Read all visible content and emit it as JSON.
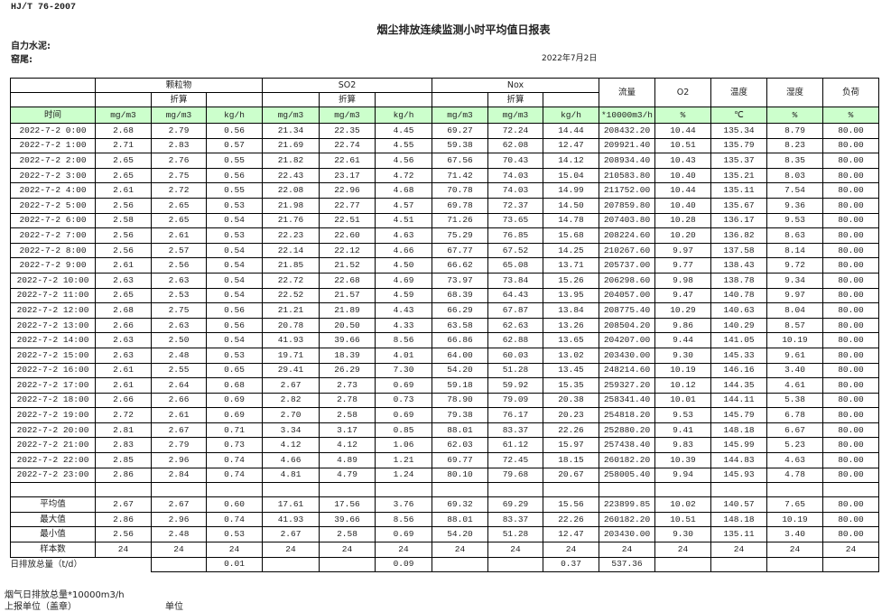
{
  "header": {
    "standard": "HJ/T  76-2007",
    "title": "烟尘排放连续监测小时平均值日报表",
    "company": "自力水泥:",
    "kiln": "窑尾:",
    "date": "2022年7月2日"
  },
  "table": {
    "groups": [
      "颗粒物",
      "SO2",
      "Nox"
    ],
    "converted_label": "折算",
    "single_headers": [
      "流量",
      "O2",
      "温度",
      "湿度",
      "负荷"
    ],
    "units": [
      "时间",
      "mg/m3",
      "mg/m3",
      "kg/h",
      "mg/m3",
      "mg/m3",
      "kg/h",
      "mg/m3",
      "mg/m3",
      "kg/h",
      "*10000m3/h",
      "%",
      "℃",
      "%",
      "%"
    ],
    "rows": [
      [
        "2022-7-2 0:00",
        "2.68",
        "2.79",
        "0.56",
        "21.34",
        "22.35",
        "4.45",
        "69.27",
        "72.24",
        "14.44",
        "208432.20",
        "10.44",
        "135.34",
        "8.79",
        "80.00"
      ],
      [
        "2022-7-2 1:00",
        "2.71",
        "2.83",
        "0.57",
        "21.69",
        "22.74",
        "4.55",
        "59.38",
        "62.08",
        "12.47",
        "209921.40",
        "10.51",
        "135.79",
        "8.23",
        "80.00"
      ],
      [
        "2022-7-2 2:00",
        "2.65",
        "2.76",
        "0.55",
        "21.82",
        "22.61",
        "4.56",
        "67.56",
        "70.43",
        "14.12",
        "208934.40",
        "10.43",
        "135.37",
        "8.35",
        "80.00"
      ],
      [
        "2022-7-2 3:00",
        "2.65",
        "2.75",
        "0.56",
        "22.43",
        "23.17",
        "4.72",
        "71.42",
        "74.03",
        "15.04",
        "210583.80",
        "10.40",
        "135.21",
        "8.03",
        "80.00"
      ],
      [
        "2022-7-2 4:00",
        "2.61",
        "2.72",
        "0.55",
        "22.08",
        "22.96",
        "4.68",
        "70.78",
        "74.03",
        "14.99",
        "211752.00",
        "10.44",
        "135.11",
        "7.54",
        "80.00"
      ],
      [
        "2022-7-2 5:00",
        "2.56",
        "2.65",
        "0.53",
        "21.98",
        "22.77",
        "4.57",
        "69.78",
        "72.37",
        "14.50",
        "207859.80",
        "10.40",
        "135.67",
        "9.36",
        "80.00"
      ],
      [
        "2022-7-2 6:00",
        "2.58",
        "2.65",
        "0.54",
        "21.76",
        "22.51",
        "4.51",
        "71.26",
        "73.65",
        "14.78",
        "207403.80",
        "10.28",
        "136.17",
        "9.53",
        "80.00"
      ],
      [
        "2022-7-2 7:00",
        "2.56",
        "2.61",
        "0.53",
        "22.23",
        "22.60",
        "4.63",
        "75.29",
        "76.85",
        "15.68",
        "208224.60",
        "10.20",
        "136.82",
        "8.63",
        "80.00"
      ],
      [
        "2022-7-2 8:00",
        "2.56",
        "2.57",
        "0.54",
        "22.14",
        "22.12",
        "4.66",
        "67.77",
        "67.52",
        "14.25",
        "210267.60",
        "9.97",
        "137.58",
        "8.14",
        "80.00"
      ],
      [
        "2022-7-2 9:00",
        "2.61",
        "2.56",
        "0.54",
        "21.85",
        "21.52",
        "4.50",
        "66.62",
        "65.08",
        "13.71",
        "205737.00",
        "9.77",
        "138.43",
        "9.72",
        "80.00"
      ],
      [
        "2022-7-2 10:00",
        "2.63",
        "2.63",
        "0.54",
        "22.72",
        "22.68",
        "4.69",
        "73.97",
        "73.84",
        "15.26",
        "206298.60",
        "9.98",
        "138.78",
        "9.34",
        "80.00"
      ],
      [
        "2022-7-2 11:00",
        "2.65",
        "2.53",
        "0.54",
        "22.52",
        "21.57",
        "4.59",
        "68.39",
        "64.43",
        "13.95",
        "204057.00",
        "9.47",
        "140.78",
        "9.97",
        "80.00"
      ],
      [
        "2022-7-2 12:00",
        "2.68",
        "2.75",
        "0.56",
        "21.21",
        "21.89",
        "4.43",
        "66.29",
        "67.87",
        "13.84",
        "208775.40",
        "10.29",
        "140.63",
        "8.04",
        "80.00"
      ],
      [
        "2022-7-2 13:00",
        "2.66",
        "2.63",
        "0.56",
        "20.78",
        "20.50",
        "4.33",
        "63.58",
        "62.63",
        "13.26",
        "208504.20",
        "9.86",
        "140.29",
        "8.57",
        "80.00"
      ],
      [
        "2022-7-2 14:00",
        "2.63",
        "2.50",
        "0.54",
        "41.93",
        "39.66",
        "8.56",
        "66.86",
        "62.88",
        "13.65",
        "204207.00",
        "9.44",
        "141.05",
        "10.19",
        "80.00"
      ],
      [
        "2022-7-2 15:00",
        "2.63",
        "2.48",
        "0.53",
        "19.71",
        "18.39",
        "4.01",
        "64.00",
        "60.03",
        "13.02",
        "203430.00",
        "9.30",
        "145.33",
        "9.61",
        "80.00"
      ],
      [
        "2022-7-2 16:00",
        "2.61",
        "2.55",
        "0.65",
        "29.41",
        "26.29",
        "7.30",
        "54.20",
        "51.28",
        "13.45",
        "248214.60",
        "10.19",
        "146.16",
        "3.40",
        "80.00"
      ],
      [
        "2022-7-2 17:00",
        "2.61",
        "2.64",
        "0.68",
        "2.67",
        "2.73",
        "0.69",
        "59.18",
        "59.92",
        "15.35",
        "259327.20",
        "10.12",
        "144.35",
        "4.61",
        "80.00"
      ],
      [
        "2022-7-2 18:00",
        "2.66",
        "2.66",
        "0.69",
        "2.82",
        "2.78",
        "0.73",
        "78.90",
        "79.09",
        "20.38",
        "258341.40",
        "10.01",
        "144.11",
        "5.38",
        "80.00"
      ],
      [
        "2022-7-2 19:00",
        "2.72",
        "2.61",
        "0.69",
        "2.70",
        "2.58",
        "0.69",
        "79.38",
        "76.17",
        "20.23",
        "254818.20",
        "9.53",
        "145.79",
        "6.78",
        "80.00"
      ],
      [
        "2022-7-2 20:00",
        "2.81",
        "2.67",
        "0.71",
        "3.34",
        "3.17",
        "0.85",
        "88.01",
        "83.37",
        "22.26",
        "252880.20",
        "9.41",
        "148.18",
        "6.67",
        "80.00"
      ],
      [
        "2022-7-2 21:00",
        "2.83",
        "2.79",
        "0.73",
        "4.12",
        "4.12",
        "1.06",
        "62.03",
        "61.12",
        "15.97",
        "257438.40",
        "9.83",
        "145.99",
        "5.23",
        "80.00"
      ],
      [
        "2022-7-2 22:00",
        "2.85",
        "2.96",
        "0.74",
        "4.66",
        "4.89",
        "1.21",
        "69.77",
        "72.45",
        "18.15",
        "260182.20",
        "10.39",
        "144.83",
        "4.63",
        "80.00"
      ],
      [
        "2022-7-2 23:00",
        "2.86",
        "2.84",
        "0.74",
        "4.81",
        "4.79",
        "1.24",
        "80.10",
        "79.68",
        "20.67",
        "258005.40",
        "9.94",
        "145.93",
        "4.78",
        "80.00"
      ]
    ],
    "summary": [
      [
        "平均值",
        "2.67",
        "2.67",
        "0.60",
        "17.61",
        "17.56",
        "3.76",
        "69.32",
        "69.29",
        "15.56",
        "223899.85",
        "10.02",
        "140.57",
        "7.65",
        "80.00"
      ],
      [
        "最大值",
        "2.86",
        "2.96",
        "0.74",
        "41.93",
        "39.66",
        "8.56",
        "88.01",
        "83.37",
        "22.26",
        "260182.20",
        "10.51",
        "148.18",
        "10.19",
        "80.00"
      ],
      [
        "最小值",
        "2.56",
        "2.48",
        "0.53",
        "2.67",
        "2.58",
        "0.69",
        "54.20",
        "51.28",
        "12.47",
        "203430.00",
        "9.30",
        "135.11",
        "3.40",
        "80.00"
      ],
      [
        "样本数",
        "24",
        "24",
        "24",
        "24",
        "24",
        "24",
        "24",
        "24",
        "24",
        "24",
        "24",
        "24",
        "24",
        "24"
      ]
    ],
    "daily_total": [
      "日排放总量（t/d）",
      "",
      "0.01",
      "",
      "",
      "0.09",
      "",
      "",
      "0.37",
      "537.36",
      "",
      "",
      "",
      ""
    ]
  },
  "footer": {
    "flue_gas_total": "烟气日排放总量*10000m3/h",
    "reporting_unit": "上报单位（盖章）",
    "unit": "单位"
  },
  "colors": {
    "unit_row_bg": "#ccffcc"
  }
}
